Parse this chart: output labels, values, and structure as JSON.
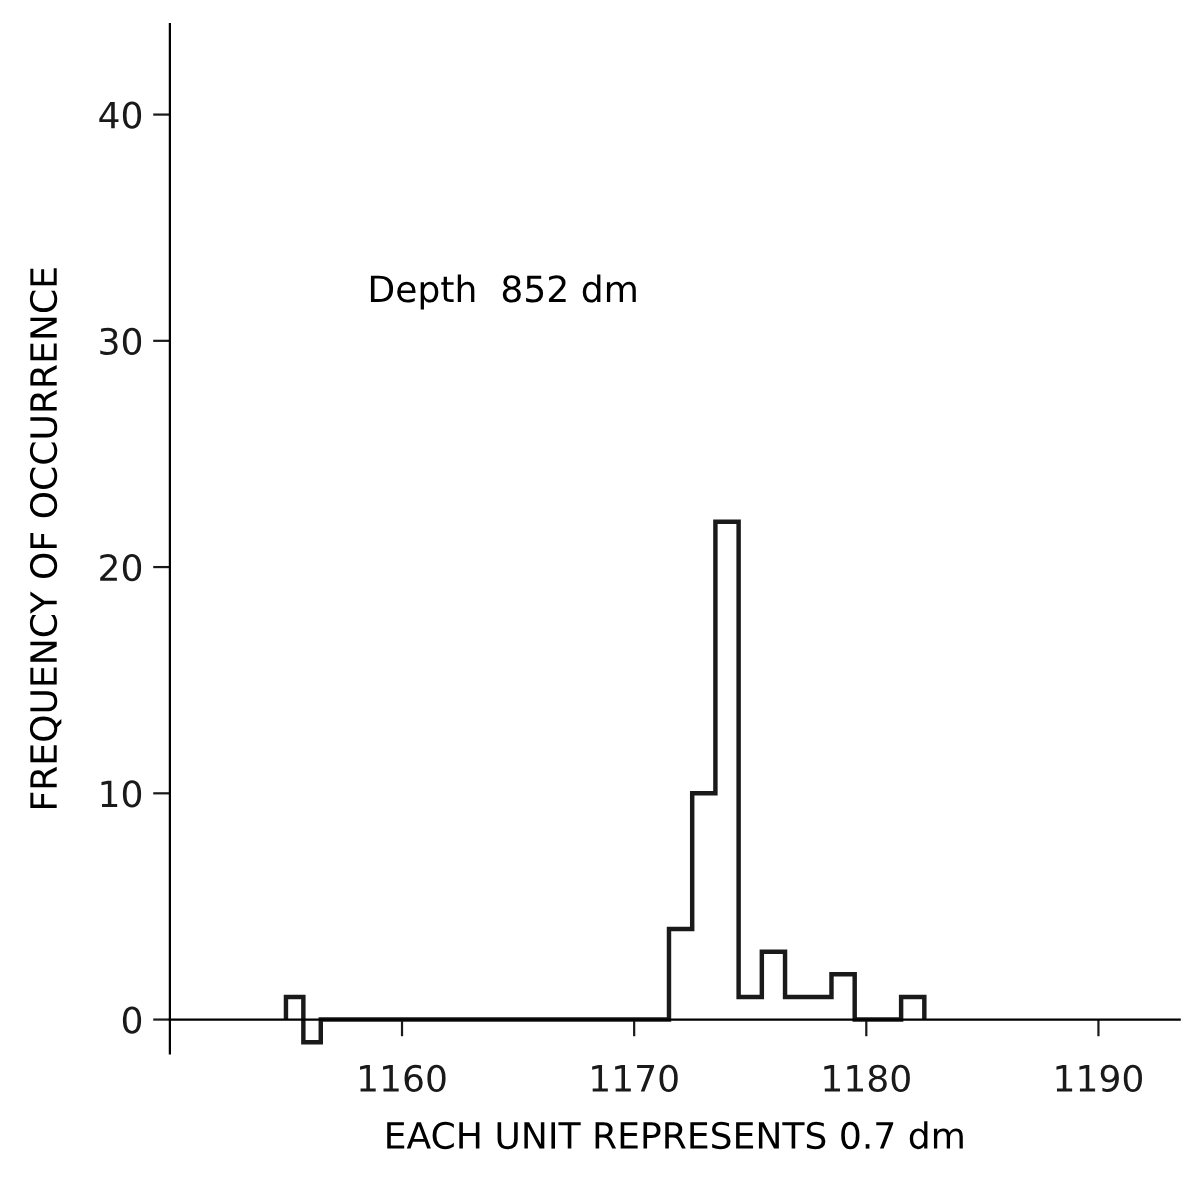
{
  "chart_data": {
    "type": "histogram",
    "xlabel": "EACH UNIT REPRESENTS 0.7 dm",
    "ylabel": "FREQUENCY OF OCCURRENCE",
    "annotations": [
      "Depth  852 dm"
    ],
    "bins": [
      1155,
      1155.75,
      1156.5,
      1171.5,
      1172.5,
      1173.5,
      1174.5,
      1175.5,
      1176.5,
      1177.5,
      1178.5,
      1179.5,
      1180.5,
      1181.5,
      1182.5
    ],
    "values": [
      1,
      -1,
      0,
      4,
      10,
      22,
      1,
      3,
      1,
      1,
      2,
      0,
      0,
      1
    ],
    "color": "#1a1a1a",
    "xlim": [
      1150,
      1193.5
    ],
    "ylim": [
      -1.5,
      44
    ],
    "xticks": [
      1160,
      1170,
      1180,
      1190
    ],
    "yticks": [
      0,
      10,
      20,
      30,
      40
    ],
    "grid": false
  }
}
